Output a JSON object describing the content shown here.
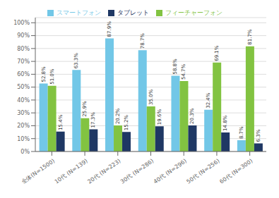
{
  "chart_data": {
    "type": "bar",
    "categories": [
      "全体(N=1500)",
      "10代 (N=139)",
      "20代 (N=223)",
      "30代 (N=286)",
      "40代 (N=296)",
      "50代 (N=256)",
      "60代 (N=300)"
    ],
    "series": [
      {
        "name": "スマートフォン",
        "color": "#72c7e7",
        "values": [
          52.8,
          63.3,
          87.9,
          78.7,
          58.8,
          32.4,
          8.7
        ],
        "value_labels": [
          "52.8%",
          "63.3%",
          "87.9%",
          "78.7%",
          "58.8%",
          "32.4%",
          "8.7%"
        ]
      },
      {
        "name": "フィーチャーフォン",
        "color": "#82c341",
        "values": [
          51.0,
          25.9,
          20.2,
          35.0,
          54.7,
          69.1,
          81.7
        ],
        "value_labels": [
          "51.0%",
          "25.9%",
          "20.2%",
          "35.0%",
          "54.7%",
          "69.1%",
          "81.7%"
        ]
      },
      {
        "name": "タブレット",
        "color": "#1f3864",
        "values": [
          15.4,
          17.3,
          15.2,
          19.6,
          20.3,
          14.8,
          6.3
        ],
        "value_labels": [
          "15.4%",
          "17.3%",
          "15.2%",
          "19.6%",
          "20.3%",
          "14.8%",
          "6.3%"
        ]
      }
    ],
    "ylim": [
      0,
      104
    ],
    "yticks": [
      {
        "value": 0,
        "label": "0%"
      },
      {
        "value": 10,
        "label": "10%"
      },
      {
        "value": 20,
        "label": "20%"
      },
      {
        "value": 30,
        "label": "30%"
      },
      {
        "value": 40,
        "label": "40%"
      },
      {
        "value": 50,
        "label": "50%"
      },
      {
        "value": 60,
        "label": "60%"
      },
      {
        "value": 70,
        "label": "70%"
      },
      {
        "value": 80,
        "label": "80%"
      },
      {
        "value": 90,
        "label": "90%"
      },
      {
        "value": 100,
        "label": "100%"
      }
    ],
    "grid": true,
    "legend": "top",
    "data_labels": true
  }
}
